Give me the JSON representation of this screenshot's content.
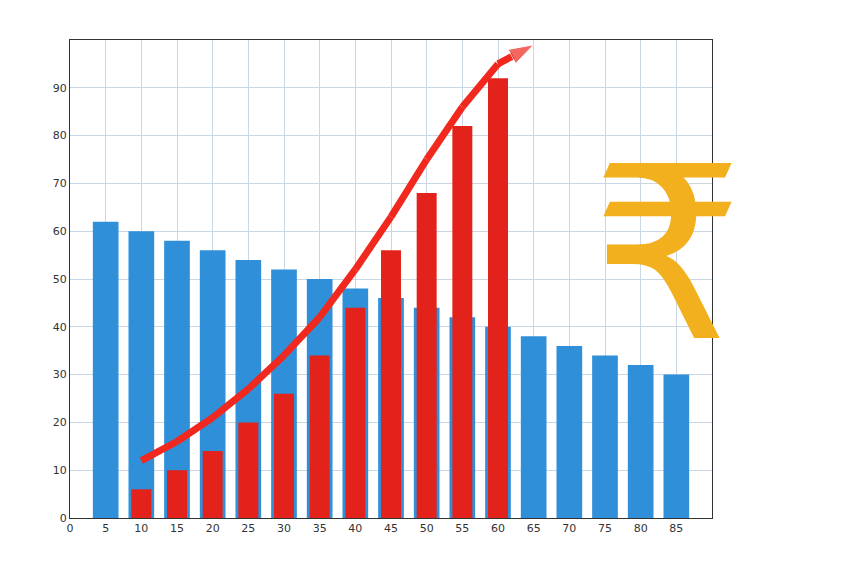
{
  "chart_data": {
    "type": "bar",
    "x": [
      5,
      10,
      15,
      20,
      25,
      30,
      35,
      40,
      45,
      50,
      55,
      60,
      65,
      70,
      75,
      80,
      85
    ],
    "series": [
      {
        "type": "bar",
        "color": "#2f8fd8",
        "values": [
          62,
          60,
          58,
          56,
          54,
          52,
          50,
          48,
          46,
          44,
          42,
          40,
          38,
          36,
          34,
          32,
          30
        ]
      },
      {
        "type": "bar",
        "color": "#e3231b",
        "values": [
          null,
          6,
          10,
          14,
          20,
          26,
          34,
          44,
          56,
          68,
          82,
          92,
          null,
          null,
          null,
          null,
          null
        ]
      },
      {
        "type": "line",
        "color": "#f0281e",
        "marker": "arrow",
        "values": [
          null,
          12,
          16,
          21,
          27,
          34,
          42,
          52,
          63,
          75,
          86,
          95,
          99,
          null,
          null,
          null,
          null
        ]
      }
    ],
    "xlim": [
      0,
      90
    ],
    "xticks": [
      0,
      5,
      10,
      15,
      20,
      25,
      30,
      35,
      40,
      45,
      50,
      55,
      60,
      65,
      70,
      75,
      80,
      85
    ],
    "ylim": [
      0,
      100
    ],
    "yticks": [
      0,
      10,
      20,
      30,
      40,
      50,
      60,
      70,
      80,
      90
    ],
    "grid": true,
    "annotations": [
      {
        "text": "₹"
      }
    ]
  }
}
